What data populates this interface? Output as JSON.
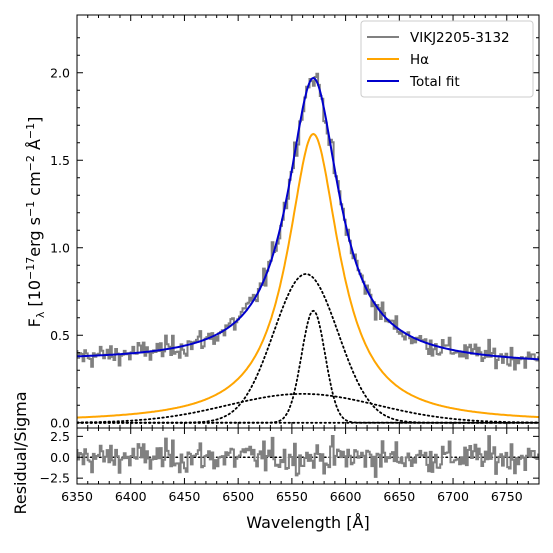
{
  "chart_data": {
    "type": "line",
    "panels": [
      {
        "id": "spectrum",
        "ylabel": "Fλ [10⁻¹⁷ erg s⁻¹ cm⁻² Å⁻¹]",
        "ylim": [
          -0.03,
          2.33
        ],
        "yticks": [
          0.0,
          0.5,
          1.0,
          1.5,
          2.0
        ],
        "ytick_labels": [
          "0.0",
          "0.5",
          "1.0",
          "1.5",
          "2.0"
        ],
        "legend_position": "top-right",
        "series": [
          {
            "name": "VIKJ2205-3132",
            "color": "#808080",
            "style": "steps",
            "note_profile": "continuum 0.35 at 6350 to 0.33 at 6780 with broad H-alpha peak reaching about 2.1 near 6570"
          },
          {
            "name": "Hα",
            "color": "#ffa500",
            "style": "solid",
            "peak": [
              6570,
              1.65
            ]
          },
          {
            "name": "Total fit",
            "color": "#0000cc",
            "style": "solid",
            "peak": [
              6570,
              1.95
            ]
          }
        ],
        "components": [
          {
            "style": "dotted",
            "center": 6563,
            "peak": 0.85
          },
          {
            "style": "dotted",
            "center": 6570,
            "peak": 0.64
          },
          {
            "style": "dotted",
            "center": 6560,
            "peak": 0.17
          },
          {
            "style": "dotted",
            "center": 6560,
            "peak": 0.0
          }
        ]
      },
      {
        "id": "residual",
        "ylabel": "Residual/Sigma",
        "ylim": [
          -3.2,
          3.5
        ],
        "yticks": [
          -2.5,
          0.0,
          2.5
        ],
        "ytick_labels": [
          "−2.5",
          "0.0",
          "2.5"
        ]
      }
    ],
    "xlabel": "Wavelength [Å]",
    "xlim": [
      6350,
      6780
    ],
    "xticks": [
      6350,
      6400,
      6450,
      6500,
      6550,
      6600,
      6650,
      6700,
      6750
    ],
    "xtick_labels": [
      "6350",
      "6400",
      "6450",
      "6500",
      "6550",
      "6600",
      "6650",
      "6700",
      "6750"
    ],
    "colors": {
      "data": "#808080",
      "halpha": "#ffa500",
      "fit": "#0000cc"
    }
  }
}
